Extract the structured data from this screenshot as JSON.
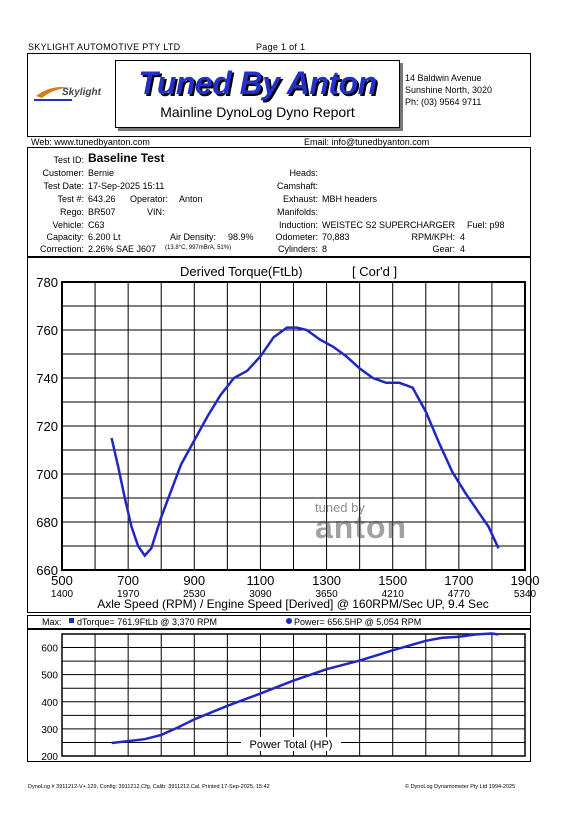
{
  "header": {
    "company": "SKYLIGHT AUTOMOTIVE PTY LTD",
    "page": "Page 1 of 1",
    "brand": "Tuned By Anton",
    "subtitle": "Mainline DynoLog Dyno Report",
    "logo_text": "Skylight",
    "address": [
      "14 Baldwin Avenue",
      "Sunshine North, 3020",
      "Ph: (03) 9564 9711"
    ],
    "web": "Web: www.tunedbyanton.com",
    "email": "Email: info@tunedbyanton.com"
  },
  "test": {
    "test_id_label": "Test ID:",
    "test_id": "Baseline Test",
    "customer_label": "Customer:",
    "customer": "Bernie",
    "date_label": "Test Date:",
    "date": "17-Sep-2025 15:11",
    "testno_label": "Test #:",
    "testno": "643.26",
    "operator_label": "Operator:",
    "operator": "Anton",
    "rego_label": "Rego:",
    "rego": "BR507",
    "vin_label": "VIN:",
    "vehicle_label": "Vehicle:",
    "vehicle": "C63",
    "capacity_label": "Capacity:",
    "capacity": "6.200 Lt",
    "airdensity_label": "Air Density:",
    "airdensity": "98.9%",
    "correction_label": "Correction:",
    "correction": "2.26% SAE J607",
    "correction_note": "(13.8°C, 997mBrA, 51%)",
    "heads_label": "Heads:",
    "camshaft_label": "Camshaft:",
    "exhaust_label": "Exhaust:",
    "exhaust": "MBH headers",
    "manifolds_label": "Manifolds:",
    "induction_label": "Induction:",
    "induction": "WEISTEC S2 SUPERCHARGER",
    "fuel": "Fuel: p98",
    "odometer_label": "Odometer:",
    "odometer": "70,883",
    "rpmkph_label": "RPM/KPH:",
    "rpmkph": "4",
    "cylinders_label": "Cylinders:",
    "cylinders": "8",
    "gear_label": "Gear:",
    "gear": "4"
  },
  "torque_chart": {
    "title": "Derived Torque(FtLb)",
    "corr": "[ Cor'd ]",
    "xlabel": "Axle Speed (RPM) / Engine Speed [Derived] @ 160RPM/Sec UP, 9.4 Sec",
    "watermark_top": "tuned by",
    "watermark_bottom": "anton"
  },
  "max_line": {
    "prefix": "Max:",
    "torque": "dTorque= 761.9FtLb @ 3,370 RPM",
    "power": "Power= 656.5HP @ 5,054 RPM"
  },
  "power_chart": {
    "label": "Power Total (HP)"
  },
  "footer": {
    "left": "DynoLog # 3911212-V+.129, Config: 3911212.Cfg, Calib: 3911212.Cal, Printed 17-Sep-2025, 15:42",
    "right": "© DynoLog Dynamometer Pty Ltd 1994-2025"
  },
  "colors": {
    "trace": "#2028c0",
    "brand": "#2330c8"
  },
  "chart_data": [
    {
      "type": "line",
      "title": "Derived Torque(FtLb)",
      "xlabel": "Axle Speed (RPM) / Engine Speed [Derived] @ 160RPM/Sec UP, 9.4 Sec",
      "ylabel": "",
      "xlim": [
        500,
        1900
      ],
      "ylim": [
        660,
        780
      ],
      "x_ticks": [
        500,
        700,
        900,
        1100,
        1300,
        1500,
        1700,
        1900
      ],
      "x2_ticks": [
        1400,
        1970,
        2530,
        3090,
        3650,
        4210,
        4770,
        5340
      ],
      "y_ticks": [
        660,
        680,
        700,
        720,
        740,
        760,
        780
      ],
      "grid": true,
      "series": [
        {
          "x": [
            650,
            670,
            690,
            710,
            730,
            750,
            770,
            800,
            830,
            860,
            900,
            940,
            980,
            1020,
            1060,
            1100,
            1140,
            1180,
            1210,
            1240,
            1280,
            1320,
            1360,
            1400,
            1440,
            1480,
            1520,
            1560,
            1600,
            1640,
            1680,
            1720,
            1760,
            1790,
            1820
          ],
          "y": [
            715,
            703,
            690,
            678,
            670,
            666,
            669,
            682,
            693,
            704,
            714,
            724,
            733,
            740,
            743,
            749,
            757,
            761,
            761,
            760,
            756,
            753,
            749,
            744,
            740,
            738,
            738,
            736,
            726,
            713,
            701,
            692,
            684,
            678,
            669
          ]
        }
      ]
    },
    {
      "type": "line",
      "title": "",
      "label": "Power Total (HP)",
      "xlim": [
        500,
        1900
      ],
      "ylim": [
        200,
        650
      ],
      "y_ticks": [
        200,
        300,
        400,
        500,
        600
      ],
      "grid": true,
      "series": [
        {
          "x": [
            650,
            700,
            750,
            800,
            850,
            900,
            1000,
            1100,
            1200,
            1300,
            1400,
            1500,
            1600,
            1650,
            1700,
            1750,
            1800,
            1820
          ],
          "y": [
            248,
            255,
            262,
            278,
            305,
            335,
            385,
            430,
            478,
            520,
            552,
            590,
            625,
            636,
            640,
            648,
            652,
            648
          ]
        }
      ]
    }
  ]
}
